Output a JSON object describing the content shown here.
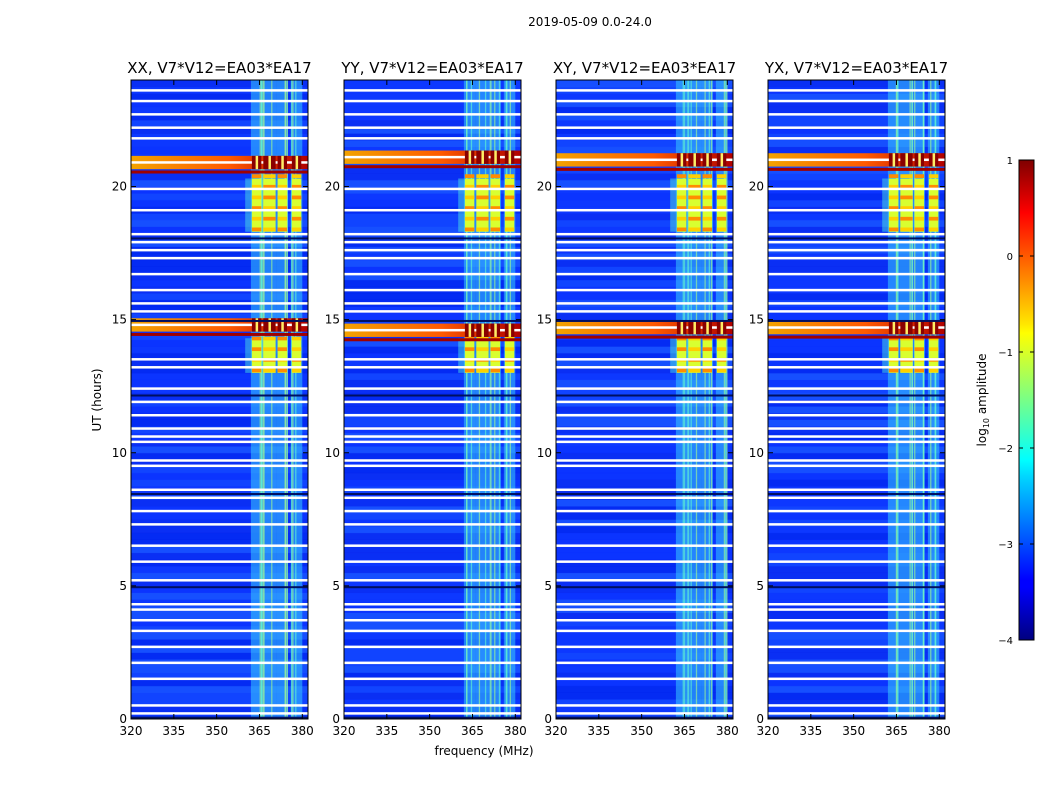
{
  "chart_data": {
    "type": "heatmap",
    "suptitle": "2019-05-09 0.0-24.0",
    "xlabel": "frequency (MHz)",
    "ylabel": "UT (hours)",
    "xlim": [
      320,
      382
    ],
    "ylim": [
      0,
      24
    ],
    "x_ticks": [
      320,
      335,
      350,
      365,
      380
    ],
    "y_ticks": [
      0,
      5,
      10,
      15,
      20
    ],
    "panels": [
      {
        "title": "XX, V7*V12=EA03*EA17",
        "flare_hours": [
          14.8,
          20.9
        ]
      },
      {
        "title": "YY, V7*V12=EA03*EA17",
        "flare_hours": [
          14.6,
          21.1
        ]
      },
      {
        "title": "XY, V7*V12=EA03*EA17",
        "flare_hours": [
          14.7,
          21.0
        ]
      },
      {
        "title": "YX, V7*V12=EA03*EA17",
        "flare_hours": [
          14.7,
          21.0
        ]
      }
    ],
    "rfi_bands_mhz": [
      [
        362,
        366
      ],
      [
        366,
        371
      ],
      [
        371,
        375
      ],
      [
        376,
        380
      ]
    ],
    "strong_rfi_hours": [
      [
        13.0,
        14.3
      ],
      [
        18.3,
        20.3
      ]
    ],
    "blanked_hours": [
      0.2,
      0.5,
      1.5,
      2.1,
      2.7,
      3.3,
      3.7,
      4.1,
      4.3,
      5.2,
      5.9,
      6.5,
      7.3,
      7.8,
      8.3,
      8.6,
      9.5,
      9.7,
      10.4,
      10.6,
      10.9,
      11.4,
      11.9,
      12.4,
      13.2,
      13.5,
      15.3,
      15.6,
      16.1,
      16.7,
      17.3,
      17.6,
      17.9,
      18.2,
      19.1,
      19.9,
      21.8,
      22.2,
      22.7,
      23.2,
      23.6
    ],
    "colorbar": {
      "label": "log10 amplitude",
      "range": [
        -4,
        1
      ],
      "ticks": [
        1,
        0,
        -1,
        -2,
        -3,
        -4
      ],
      "colormap": "jet"
    }
  }
}
